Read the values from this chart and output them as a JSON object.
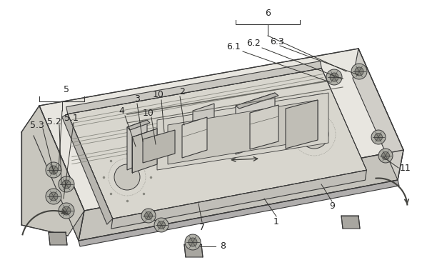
{
  "bg": "#ffffff",
  "fw": 5.98,
  "fh": 3.85,
  "dpi": 100,
  "lc": "#222222",
  "fs": 9.0,
  "line_color": "#3a3a3a",
  "top_face_color": "#e8e8e0",
  "front_face_color": "#c8c8c0",
  "left_face_color": "#b8b8b0",
  "inner_color": "#d4d4cc",
  "rail_color": "#a0a09a",
  "mech_color": "#c0c0b8",
  "bolt_outer": "#888880",
  "bolt_inner": "#555550"
}
